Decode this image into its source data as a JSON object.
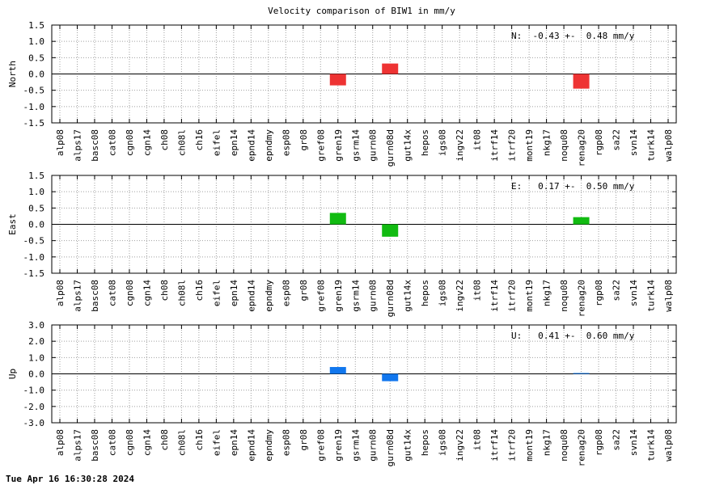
{
  "title": "Velocity comparison of BIW1 in mm/y",
  "timestamp": "Tue Apr 16 16:30:28 2024",
  "chart_data": [
    {
      "type": "bar",
      "ylabel": "North",
      "ylim": [
        -1.5,
        1.5
      ],
      "yticks": [
        "-1.5",
        "-1.0",
        "-0.5",
        "0.0",
        "0.5",
        "1.0",
        "1.5"
      ],
      "grid": true,
      "annotation": "N:  -0.43 +-  0.48 mm/y",
      "color": "#ee3333",
      "categories": [
        "alp08",
        "alps17",
        "basc08",
        "cat08",
        "cgn08",
        "cgn14",
        "ch08",
        "ch08l",
        "ch16",
        "eifel",
        "epn14",
        "epnd14",
        "epndmy",
        "esp08",
        "gr08",
        "gref08",
        "gren19",
        "gsrm14",
        "gurn08",
        "gurn08d",
        "gut14x",
        "hepos",
        "igs08",
        "ingv22",
        "it08",
        "itrf14",
        "itrf20",
        "mont19",
        "nkg17",
        "noqu08",
        "renag20",
        "rgp08",
        "sa22",
        "svn14",
        "turk14",
        "walp08"
      ],
      "values": [
        0,
        0,
        0,
        0,
        0,
        0,
        0,
        0,
        0,
        0,
        0,
        0,
        0,
        0,
        0,
        0,
        -0.35,
        0,
        0,
        0.32,
        0,
        0,
        0,
        0,
        0,
        0,
        0,
        0,
        0,
        0,
        -0.45,
        0,
        0,
        0,
        0,
        0
      ]
    },
    {
      "type": "bar",
      "ylabel": "East",
      "ylim": [
        -1.5,
        1.5
      ],
      "yticks": [
        "-1.5",
        "-1.0",
        "-0.5",
        "0.0",
        "0.5",
        "1.0",
        "1.5"
      ],
      "grid": true,
      "annotation": "E:   0.17 +-  0.50 mm/y",
      "color": "#11bb11",
      "categories": [
        "alp08",
        "alps17",
        "basc08",
        "cat08",
        "cgn08",
        "cgn14",
        "ch08",
        "ch08l",
        "ch16",
        "eifel",
        "epn14",
        "epnd14",
        "epndmy",
        "esp08",
        "gr08",
        "gref08",
        "gren19",
        "gsrm14",
        "gurn08",
        "gurn08d",
        "gut14x",
        "hepos",
        "igs08",
        "ingv22",
        "it08",
        "itrf14",
        "itrf20",
        "mont19",
        "nkg17",
        "noqu08",
        "renag20",
        "rgp08",
        "sa22",
        "svn14",
        "turk14",
        "walp08"
      ],
      "values": [
        0,
        0,
        0,
        0,
        0,
        0,
        0,
        0,
        0,
        0,
        0,
        0,
        0,
        0,
        0,
        0,
        0.35,
        0,
        0,
        -0.38,
        0,
        0,
        0,
        0,
        0,
        0,
        0,
        0,
        0,
        0,
        0.22,
        0,
        0,
        0,
        0,
        0
      ]
    },
    {
      "type": "bar",
      "ylabel": "Up",
      "ylim": [
        -3.0,
        3.0
      ],
      "yticks": [
        "-3.0",
        "-2.0",
        "-1.0",
        "0.0",
        "1.0",
        "2.0",
        "3.0"
      ],
      "grid": true,
      "annotation": "U:   0.41 +-  0.60 mm/y",
      "color": "#1177ee",
      "categories": [
        "alp08",
        "alps17",
        "basc08",
        "cat08",
        "cgn08",
        "cgn14",
        "ch08",
        "ch08l",
        "ch16",
        "eifel",
        "epn14",
        "epnd14",
        "epndmy",
        "esp08",
        "gr08",
        "gref08",
        "gren19",
        "gsrm14",
        "gurn08",
        "gurn08d",
        "gut14x",
        "hepos",
        "igs08",
        "ingv22",
        "it08",
        "itrf14",
        "itrf20",
        "mont19",
        "nkg17",
        "noqu08",
        "renag20",
        "rgp08",
        "sa22",
        "svn14",
        "turk14",
        "walp08"
      ],
      "values": [
        0,
        0,
        0,
        0,
        0,
        0,
        0,
        0,
        0,
        0,
        0,
        0,
        0,
        0,
        0,
        0,
        0.42,
        0,
        0,
        -0.45,
        0,
        0,
        0,
        0,
        0,
        0,
        0,
        0,
        0,
        0,
        0.05,
        0,
        0,
        0,
        0,
        0
      ]
    }
  ]
}
